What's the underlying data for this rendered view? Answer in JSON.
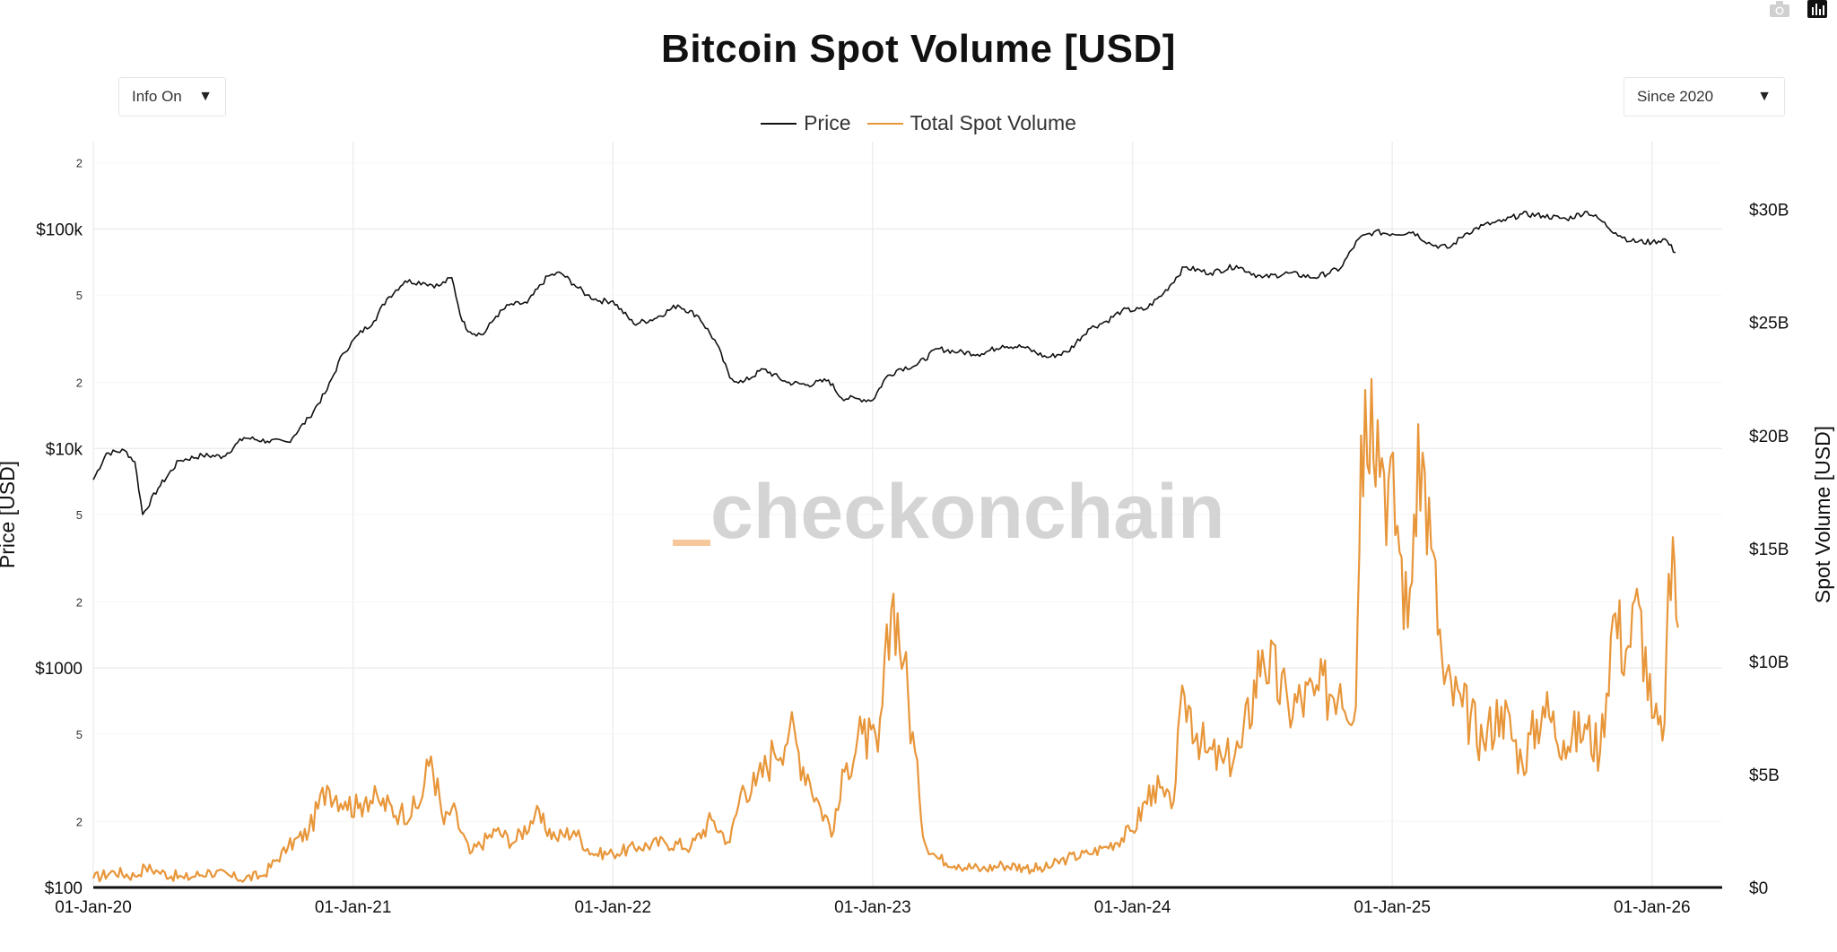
{
  "title": "Bitcoin Spot Volume [USD]",
  "controls": {
    "info_label": "Info On",
    "range_label": "Since 2020"
  },
  "legend": [
    {
      "name": "Price",
      "color": "#111111"
    },
    {
      "name": "Total Spot Volume",
      "color": "#e8963a"
    }
  ],
  "watermark": {
    "underscore": "_",
    "text": "checkonchain"
  },
  "icons": [
    "camera-icon",
    "bar-chart-icon"
  ],
  "colors": {
    "price": "#111111",
    "volume": "#e8963a",
    "grid": "#eeeeee",
    "watermark_accent": "#f5c79a"
  },
  "chart_data": {
    "type": "line",
    "title": "Bitcoin Spot Volume [USD]",
    "x_start": 2020.0,
    "x_end": 2026.27,
    "x_ticks": [
      {
        "value": 2020,
        "label": "01-Jan-20"
      },
      {
        "value": 2021,
        "label": "01-Jan-21"
      },
      {
        "value": 2022,
        "label": "01-Jan-22"
      },
      {
        "value": 2023,
        "label": "01-Jan-23"
      },
      {
        "value": 2024,
        "label": "01-Jan-24"
      },
      {
        "value": 2025,
        "label": "01-Jan-25"
      },
      {
        "value": 2026,
        "label": "01-Jan-26"
      }
    ],
    "y_left": {
      "label": "Price [USD]",
      "scale": "log",
      "range": [
        100,
        250000
      ],
      "ticks": [
        {
          "value": 100,
          "label": "$100"
        },
        {
          "value": 1000,
          "label": "$1000"
        },
        {
          "value": 10000,
          "label": "$10k"
        },
        {
          "value": 100000,
          "label": "$100k"
        }
      ],
      "minor_ticks": [
        {
          "value": 200,
          "label": "2"
        },
        {
          "value": 500,
          "label": "5"
        },
        {
          "value": 2000,
          "label": "2"
        },
        {
          "value": 5000,
          "label": "5"
        },
        {
          "value": 20000,
          "label": "2"
        },
        {
          "value": 50000,
          "label": "5"
        },
        {
          "value": 200000,
          "label": "2"
        }
      ]
    },
    "y_right": {
      "label": "Spot Volume [USD]",
      "scale": "linear",
      "range": [
        0,
        33000000000.0
      ],
      "ticks": [
        {
          "value": 0,
          "label": "$0"
        },
        {
          "value": 5000000000.0,
          "label": "$5B"
        },
        {
          "value": 10000000000.0,
          "label": "$10B"
        },
        {
          "value": 15000000000.0,
          "label": "$15B"
        },
        {
          "value": 20000000000.0,
          "label": "$20B"
        },
        {
          "value": 25000000000.0,
          "label": "$25B"
        },
        {
          "value": 30000000000.0,
          "label": "$30B"
        }
      ]
    },
    "series": [
      {
        "name": "Price",
        "axis": "left",
        "x": [
          2020.0,
          2020.05,
          2020.12,
          2020.16,
          2020.19,
          2020.25,
          2020.33,
          2020.42,
          2020.5,
          2020.58,
          2020.67,
          2020.75,
          2020.83,
          2020.9,
          2020.96,
          2021.02,
          2021.08,
          2021.13,
          2021.2,
          2021.27,
          2021.33,
          2021.38,
          2021.42,
          2021.45,
          2021.5,
          2021.55,
          2021.6,
          2021.67,
          2021.75,
          2021.8,
          2021.85,
          2021.9,
          2021.95,
          2022.0,
          2022.08,
          2022.16,
          2022.25,
          2022.33,
          2022.4,
          2022.45,
          2022.5,
          2022.58,
          2022.67,
          2022.75,
          2022.83,
          2022.88,
          2022.95,
          2023.0,
          2023.05,
          2023.1,
          2023.17,
          2023.25,
          2023.33,
          2023.42,
          2023.5,
          2023.58,
          2023.67,
          2023.75,
          2023.83,
          2023.9,
          2023.96,
          2024.05,
          2024.12,
          2024.2,
          2024.3,
          2024.4,
          2024.5,
          2024.6,
          2024.7,
          2024.8,
          2024.87,
          2024.93,
          2025.0,
          2025.08,
          2025.15,
          2025.22,
          2025.28,
          2025.35,
          2025.42,
          2025.5,
          2025.58,
          2025.67,
          2025.75,
          2025.8,
          2025.86,
          2025.92,
          2026.0,
          2026.05,
          2026.09
        ],
        "y": [
          7200,
          9500,
          9800,
          8700,
          5000,
          6600,
          8800,
          9300,
          9200,
          11200,
          10800,
          10700,
          13800,
          18500,
          27000,
          33000,
          38000,
          48000,
          58000,
          57000,
          55000,
          60000,
          38000,
          34000,
          33000,
          40000,
          45000,
          46000,
          61000,
          63000,
          56000,
          50000,
          47000,
          47000,
          37000,
          39000,
          45000,
          40000,
          30000,
          21000,
          20000,
          23000,
          20000,
          19500,
          20500,
          17000,
          16800,
          16600,
          21000,
          23000,
          24000,
          28500,
          27500,
          27000,
          29500,
          29000,
          26000,
          27500,
          35000,
          38000,
          42500,
          43000,
          51000,
          67000,
          63000,
          68000,
          60000,
          63000,
          60000,
          66000,
          90000,
          97000,
          95000,
          97000,
          85000,
          82000,
          95000,
          104000,
          108000,
          117000,
          115000,
          111000,
          120000,
          110000,
          96000,
          88000,
          87000,
          90000,
          78000
        ]
      },
      {
        "name": "Total Spot Volume",
        "axis": "right",
        "x": [
          2020.0,
          2020.08,
          2020.16,
          2020.2,
          2020.25,
          2020.35,
          2020.45,
          2020.55,
          2020.65,
          2020.75,
          2020.83,
          2020.9,
          2020.97,
          2021.02,
          2021.05,
          2021.1,
          2021.18,
          2021.25,
          2021.3,
          2021.35,
          2021.38,
          2021.45,
          2021.55,
          2021.62,
          2021.7,
          2021.78,
          2021.85,
          2021.92,
          2022.0,
          2022.1,
          2022.2,
          2022.3,
          2022.38,
          2022.45,
          2022.5,
          2022.55,
          2022.62,
          2022.68,
          2022.75,
          2022.8,
          2022.85,
          2022.9,
          2022.96,
          2023.02,
          2023.08,
          2023.12,
          2023.18,
          2023.2,
          2023.25,
          2023.33,
          2023.42,
          2023.5,
          2023.58,
          2023.66,
          2023.75,
          2023.83,
          2023.9,
          2024.0,
          2024.08,
          2024.15,
          2024.2,
          2024.28,
          2024.35,
          2024.42,
          2024.5,
          2024.6,
          2024.7,
          2024.8,
          2024.86,
          2024.88,
          2024.92,
          2024.96,
          2025.02,
          2025.06,
          2025.1,
          2025.15,
          2025.2,
          2025.27,
          2025.35,
          2025.42,
          2025.5,
          2025.58,
          2025.66,
          2025.75,
          2025.8,
          2025.85,
          2025.9,
          2025.95,
          2026.0,
          2026.04,
          2026.08,
          2026.1
        ],
        "y": [
          400000000.0,
          700000000.0,
          500000000.0,
          900000000.0,
          700000000.0,
          400000000.0,
          700000000.0,
          400000000.0,
          500000000.0,
          1800000000.0,
          2500000000.0,
          4500000000.0,
          3800000000.0,
          3500000000.0,
          4000000000.0,
          3800000000.0,
          3300000000.0,
          3500000000.0,
          5800000000.0,
          2800000000.0,
          3500000000.0,
          1500000000.0,
          2500000000.0,
          2000000000.0,
          3200000000.0,
          2200000000.0,
          2500000000.0,
          1500000000.0,
          1500000000.0,
          1800000000.0,
          2000000000.0,
          1800000000.0,
          3000000000.0,
          2000000000.0,
          4500000000.0,
          4500000000.0,
          6000000000.0,
          7000000000.0,
          5000000000.0,
          3500000000.0,
          2500000000.0,
          5500000000.0,
          6800000000.0,
          6000000000.0,
          13000000000.0,
          10000000000.0,
          4000000000.0,
          2000000000.0,
          1300000000.0,
          1000000000.0,
          800000000.0,
          1000000000.0,
          900000000.0,
          800000000.0,
          1300000000.0,
          1500000000.0,
          1800000000.0,
          2500000000.0,
          4500000000.0,
          3500000000.0,
          8500000000.0,
          6000000000.0,
          5500000000.0,
          6200000000.0,
          10500000000.0,
          8000000000.0,
          8500000000.0,
          9000000000.0,
          8000000000.0,
          20000000000.0,
          22500000000.0,
          19000000000.0,
          16000000000.0,
          11500000000.0,
          20500000000.0,
          15000000000.0,
          9000000000.0,
          8000000000.0,
          6500000000.0,
          8000000000.0,
          5500000000.0,
          8000000000.0,
          6500000000.0,
          7000000000.0,
          6000000000.0,
          12000000000.0,
          10500000000.0,
          12500000000.0,
          7500000000.0,
          6500000000.0,
          15500000000.0,
          11500000000.0
        ]
      }
    ]
  }
}
